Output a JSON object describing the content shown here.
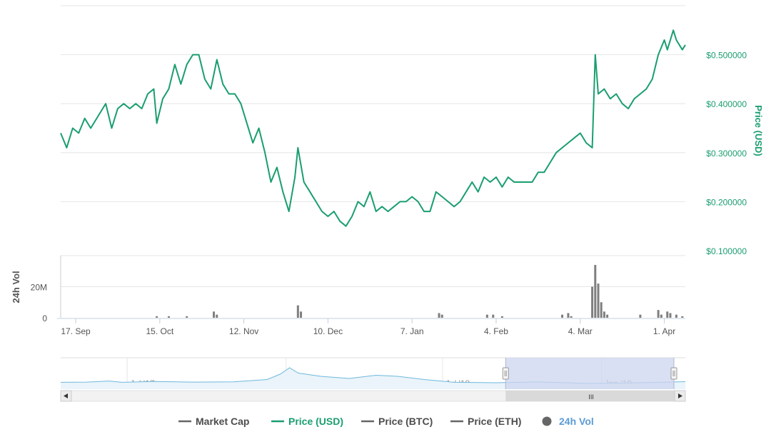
{
  "chart_data": {
    "type": "line",
    "colors": {
      "price": "#1a9e6e",
      "volume": "#7f7f7f",
      "grid": "#e6e6e6",
      "navigator_line": "#6fb8dd",
      "navigator_mask": "#cdd6ef",
      "axis_text": "#555555",
      "legend_text": "#4d4d4d"
    },
    "price_axis": {
      "label": "Price (USD)",
      "side": "right",
      "ylim": [
        0.1,
        0.6
      ],
      "ticks": [
        {
          "value": 0.5,
          "label": "$0.500000"
        },
        {
          "value": 0.4,
          "label": "$0.400000"
        },
        {
          "value": 0.3,
          "label": "$0.300000"
        },
        {
          "value": 0.2,
          "label": "$0.200000"
        },
        {
          "value": 0.1,
          "label": "$0.100000"
        }
      ]
    },
    "volume_axis": {
      "label": "24h Vol",
      "side": "left",
      "ylim": [
        0,
        40
      ],
      "ticks": [
        {
          "value": 20,
          "label": "20M"
        },
        {
          "value": 0,
          "label": "0"
        }
      ]
    },
    "x_axis": {
      "type": "date",
      "range": [
        "2018-09-12",
        "2019-04-08"
      ],
      "ticks": [
        {
          "date": "2018-09-17",
          "label": "17. Sep"
        },
        {
          "date": "2018-10-15",
          "label": "15. Oct"
        },
        {
          "date": "2018-11-12",
          "label": "12. Nov"
        },
        {
          "date": "2018-12-10",
          "label": "10. Dec"
        },
        {
          "date": "2019-01-07",
          "label": "7. Jan"
        },
        {
          "date": "2019-02-04",
          "label": "4. Feb"
        },
        {
          "date": "2019-03-04",
          "label": "4. Mar"
        },
        {
          "date": "2019-04-01",
          "label": "1. Apr"
        }
      ]
    },
    "series": [
      {
        "name": "Price (USD)",
        "type": "line",
        "unit": "USD",
        "points": [
          [
            "2018-09-12",
            0.34
          ],
          [
            "2018-09-14",
            0.31
          ],
          [
            "2018-09-16",
            0.35
          ],
          [
            "2018-09-18",
            0.34
          ],
          [
            "2018-09-20",
            0.37
          ],
          [
            "2018-09-22",
            0.35
          ],
          [
            "2018-09-25",
            0.38
          ],
          [
            "2018-09-27",
            0.4
          ],
          [
            "2018-09-29",
            0.35
          ],
          [
            "2018-10-01",
            0.39
          ],
          [
            "2018-10-03",
            0.4
          ],
          [
            "2018-10-05",
            0.39
          ],
          [
            "2018-10-07",
            0.4
          ],
          [
            "2018-10-09",
            0.39
          ],
          [
            "2018-10-11",
            0.42
          ],
          [
            "2018-10-13",
            0.43
          ],
          [
            "2018-10-14",
            0.36
          ],
          [
            "2018-10-16",
            0.41
          ],
          [
            "2018-10-18",
            0.43
          ],
          [
            "2018-10-20",
            0.48
          ],
          [
            "2018-10-22",
            0.44
          ],
          [
            "2018-10-24",
            0.48
          ],
          [
            "2018-10-26",
            0.5
          ],
          [
            "2018-10-28",
            0.5
          ],
          [
            "2018-10-30",
            0.45
          ],
          [
            "2018-11-01",
            0.43
          ],
          [
            "2018-11-03",
            0.49
          ],
          [
            "2018-11-05",
            0.44
          ],
          [
            "2018-11-07",
            0.42
          ],
          [
            "2018-11-09",
            0.42
          ],
          [
            "2018-11-11",
            0.4
          ],
          [
            "2018-11-13",
            0.36
          ],
          [
            "2018-11-15",
            0.32
          ],
          [
            "2018-11-17",
            0.35
          ],
          [
            "2018-11-19",
            0.3
          ],
          [
            "2018-11-21",
            0.24
          ],
          [
            "2018-11-23",
            0.27
          ],
          [
            "2018-11-25",
            0.22
          ],
          [
            "2018-11-27",
            0.18
          ],
          [
            "2018-11-29",
            0.25
          ],
          [
            "2018-11-30",
            0.31
          ],
          [
            "2018-12-02",
            0.24
          ],
          [
            "2018-12-04",
            0.22
          ],
          [
            "2018-12-06",
            0.2
          ],
          [
            "2018-12-08",
            0.18
          ],
          [
            "2018-12-10",
            0.17
          ],
          [
            "2018-12-12",
            0.18
          ],
          [
            "2018-12-14",
            0.16
          ],
          [
            "2018-12-16",
            0.15
          ],
          [
            "2018-12-18",
            0.17
          ],
          [
            "2018-12-20",
            0.2
          ],
          [
            "2018-12-22",
            0.19
          ],
          [
            "2018-12-24",
            0.22
          ],
          [
            "2018-12-26",
            0.18
          ],
          [
            "2018-12-28",
            0.19
          ],
          [
            "2018-12-30",
            0.18
          ],
          [
            "2019-01-01",
            0.19
          ],
          [
            "2019-01-03",
            0.2
          ],
          [
            "2019-01-05",
            0.2
          ],
          [
            "2019-01-07",
            0.21
          ],
          [
            "2019-01-09",
            0.2
          ],
          [
            "2019-01-11",
            0.18
          ],
          [
            "2019-01-13",
            0.18
          ],
          [
            "2019-01-15",
            0.22
          ],
          [
            "2019-01-17",
            0.21
          ],
          [
            "2019-01-19",
            0.2
          ],
          [
            "2019-01-21",
            0.19
          ],
          [
            "2019-01-23",
            0.2
          ],
          [
            "2019-01-25",
            0.22
          ],
          [
            "2019-01-27",
            0.24
          ],
          [
            "2019-01-29",
            0.22
          ],
          [
            "2019-01-31",
            0.25
          ],
          [
            "2019-02-02",
            0.24
          ],
          [
            "2019-02-04",
            0.25
          ],
          [
            "2019-02-06",
            0.23
          ],
          [
            "2019-02-08",
            0.25
          ],
          [
            "2019-02-10",
            0.24
          ],
          [
            "2019-02-12",
            0.24
          ],
          [
            "2019-02-14",
            0.24
          ],
          [
            "2019-02-16",
            0.24
          ],
          [
            "2019-02-18",
            0.26
          ],
          [
            "2019-02-20",
            0.26
          ],
          [
            "2019-02-22",
            0.28
          ],
          [
            "2019-02-24",
            0.3
          ],
          [
            "2019-02-26",
            0.31
          ],
          [
            "2019-02-28",
            0.32
          ],
          [
            "2019-03-02",
            0.33
          ],
          [
            "2019-03-04",
            0.34
          ],
          [
            "2019-03-06",
            0.32
          ],
          [
            "2019-03-08",
            0.31
          ],
          [
            "2019-03-09",
            0.5
          ],
          [
            "2019-03-10",
            0.42
          ],
          [
            "2019-03-12",
            0.43
          ],
          [
            "2019-03-14",
            0.41
          ],
          [
            "2019-03-16",
            0.42
          ],
          [
            "2019-03-18",
            0.4
          ],
          [
            "2019-03-20",
            0.39
          ],
          [
            "2019-03-22",
            0.41
          ],
          [
            "2019-03-24",
            0.42
          ],
          [
            "2019-03-26",
            0.43
          ],
          [
            "2019-03-28",
            0.45
          ],
          [
            "2019-03-30",
            0.5
          ],
          [
            "2019-04-01",
            0.53
          ],
          [
            "2019-04-02",
            0.51
          ],
          [
            "2019-04-04",
            0.55
          ],
          [
            "2019-04-05",
            0.53
          ],
          [
            "2019-04-07",
            0.51
          ],
          [
            "2019-04-08",
            0.52
          ]
        ]
      },
      {
        "name": "24h Vol",
        "type": "column",
        "unit": "M",
        "points": [
          [
            "2018-10-14",
            1
          ],
          [
            "2018-10-18",
            1
          ],
          [
            "2018-10-24",
            1
          ],
          [
            "2018-11-02",
            4
          ],
          [
            "2018-11-03",
            2
          ],
          [
            "2018-11-30",
            8
          ],
          [
            "2018-12-01",
            4
          ],
          [
            "2019-01-16",
            3
          ],
          [
            "2019-01-17",
            2
          ],
          [
            "2019-02-01",
            2
          ],
          [
            "2019-02-03",
            2
          ],
          [
            "2019-02-06",
            1
          ],
          [
            "2019-02-26",
            2
          ],
          [
            "2019-02-28",
            3
          ],
          [
            "2019-03-01",
            1
          ],
          [
            "2019-03-08",
            20
          ],
          [
            "2019-03-09",
            34
          ],
          [
            "2019-03-10",
            22
          ],
          [
            "2019-03-11",
            10
          ],
          [
            "2019-03-12",
            4
          ],
          [
            "2019-03-13",
            2
          ],
          [
            "2019-03-24",
            2
          ],
          [
            "2019-03-30",
            5
          ],
          [
            "2019-03-31",
            2
          ],
          [
            "2019-04-02",
            4
          ],
          [
            "2019-04-03",
            3
          ],
          [
            "2019-04-05",
            2
          ],
          [
            "2019-04-07",
            1
          ]
        ]
      }
    ],
    "navigator": {
      "range": [
        "2017-04-15",
        "2019-04-08"
      ],
      "selected": [
        "2018-09-12",
        "2019-04-08"
      ],
      "ticks": [
        {
          "date": "2017-07-01",
          "label": "Jul '17"
        },
        {
          "date": "2018-01-01",
          "label": "Jan '18"
        },
        {
          "date": "2018-07-01",
          "label": "Jul '18"
        },
        {
          "date": "2019-01-01",
          "label": "Jan '19"
        }
      ],
      "points": [
        [
          "2017-04-15",
          0.12
        ],
        [
          "2017-05-15",
          0.13
        ],
        [
          "2017-06-10",
          0.18
        ],
        [
          "2017-06-25",
          0.12
        ],
        [
          "2017-08-01",
          0.16
        ],
        [
          "2017-09-15",
          0.13
        ],
        [
          "2017-11-01",
          0.14
        ],
        [
          "2017-12-10",
          0.25
        ],
        [
          "2017-12-25",
          0.5
        ],
        [
          "2018-01-05",
          0.8
        ],
        [
          "2018-01-15",
          0.55
        ],
        [
          "2018-02-10",
          0.4
        ],
        [
          "2018-03-15",
          0.3
        ],
        [
          "2018-04-15",
          0.45
        ],
        [
          "2018-05-10",
          0.4
        ],
        [
          "2018-06-10",
          0.25
        ],
        [
          "2018-07-15",
          0.12
        ],
        [
          "2018-09-01",
          0.1
        ],
        [
          "2018-10-20",
          0.14
        ],
        [
          "2018-12-15",
          0.07
        ],
        [
          "2019-02-01",
          0.09
        ],
        [
          "2019-03-10",
          0.12
        ],
        [
          "2019-04-08",
          0.15
        ]
      ]
    },
    "legend": [
      {
        "name": "Market Cap",
        "symbol": "line",
        "active": false
      },
      {
        "name": "Price (USD)",
        "symbol": "line",
        "active": true,
        "color": "#1a9e6e"
      },
      {
        "name": "Price (BTC)",
        "symbol": "line",
        "active": false
      },
      {
        "name": "Price (ETH)",
        "symbol": "line",
        "active": false
      },
      {
        "name": "24h Vol",
        "symbol": "circle",
        "active": true,
        "color": "#5b9bd5"
      }
    ],
    "navigator_scrollbar_grip": "III"
  }
}
